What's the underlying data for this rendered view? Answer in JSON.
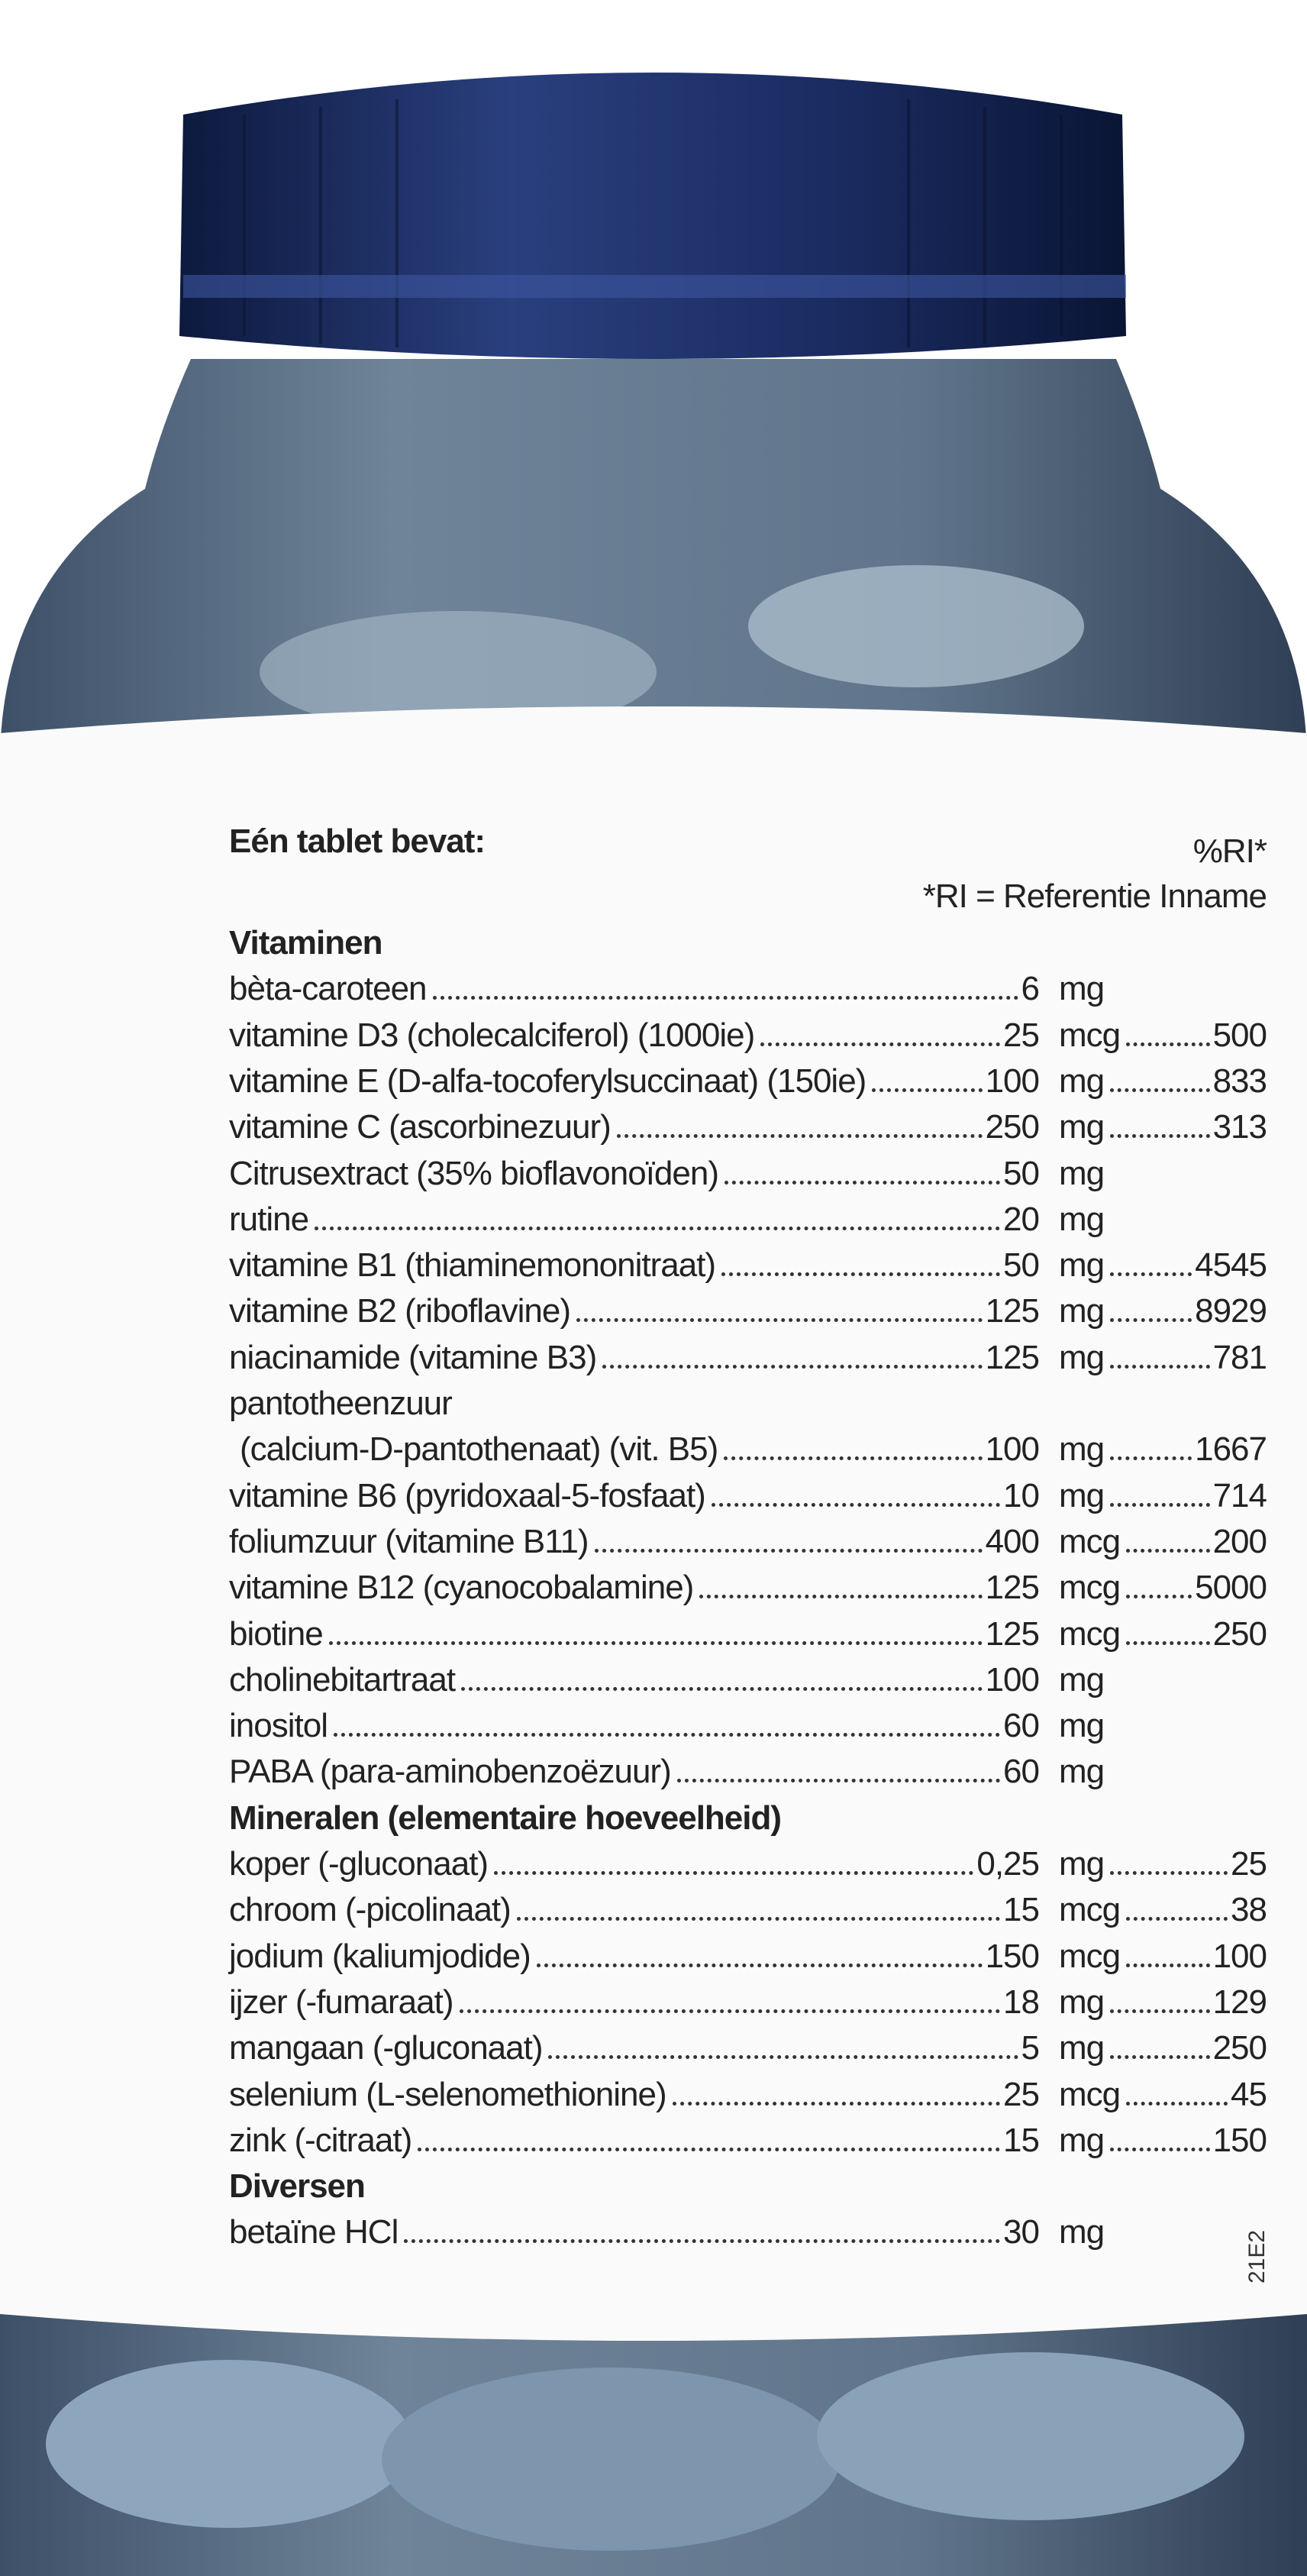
{
  "header": {
    "title": "Eén tablet bevat:",
    "ri_header": "%RI*",
    "ri_note": "*RI = Referentie Inname"
  },
  "sections": [
    {
      "title": "Vitaminen",
      "rows": [
        {
          "name": "bèta-caroteen",
          "amount": "6",
          "unit": "mg"
        },
        {
          "name": "vitamine D3 (cholecalciferol) (1000ie)",
          "amount": "25",
          "unit": "mcg",
          "ri": "500"
        },
        {
          "name": "vitamine E (D-alfa-tocoferylsuccinaat) (150ie)",
          "amount": "100",
          "unit": "mg",
          "ri": "833"
        },
        {
          "name": "vitamine C (ascorbinezuur)",
          "amount": "250",
          "unit": "mg",
          "ri": "313"
        },
        {
          "name": "Citrusextract (35% bioflavonoïden)",
          "amount": "50",
          "unit": "mg"
        },
        {
          "name": "rutine",
          "amount": "20",
          "unit": "mg"
        },
        {
          "name": "vitamine B1 (thiaminemononitraat)",
          "amount": "50",
          "unit": "mg",
          "ri": "4545"
        },
        {
          "name": "vitamine B2 (riboflavine)",
          "amount": "125",
          "unit": "mg",
          "ri": "8929"
        },
        {
          "name": "niacinamide (vitamine B3)",
          "amount": "125",
          "unit": "mg",
          "ri": "781"
        },
        {
          "name": "pantotheenzuur",
          "name_cont": "(calcium-D-pantothenaat) (vit. B5)",
          "amount": "100",
          "unit": "mg",
          "ri": "1667"
        },
        {
          "name": "vitamine B6 (pyridoxaal-5-fosfaat)",
          "amount": "10",
          "unit": "mg",
          "ri": "714"
        },
        {
          "name": "foliumzuur (vitamine B11)",
          "amount": "400",
          "unit": "mcg",
          "ri": "200"
        },
        {
          "name": "vitamine B12 (cyanocobalamine)",
          "amount": "125",
          "unit": "mcg",
          "ri": "5000"
        },
        {
          "name": "biotine",
          "amount": "125",
          "unit": "mcg",
          "ri": "250"
        },
        {
          "name": "cholinebitartraat",
          "amount": "100",
          "unit": "mg"
        },
        {
          "name": "inositol",
          "amount": "60",
          "unit": "mg"
        },
        {
          "name": "PABA (para-aminobenzoëzuur)",
          "amount": "60",
          "unit": "mg"
        }
      ]
    },
    {
      "title": "Mineralen (elementaire hoeveelheid)",
      "rows": [
        {
          "name": "koper (-gluconaat)",
          "amount": "0,25",
          "unit": "mg",
          "ri": "25"
        },
        {
          "name": "chroom (-picolinaat)",
          "amount": "15",
          "unit": "mcg",
          "ri": "38"
        },
        {
          "name": "jodium (kaliumjodide)",
          "amount": "150",
          "unit": "mcg",
          "ri": "100"
        },
        {
          "name": "ijzer (-fumaraat)",
          "amount": "18",
          "unit": "mg",
          "ri": "129"
        },
        {
          "name": "mangaan (-gluconaat)",
          "amount": "5",
          "unit": "mg",
          "ri": "250"
        },
        {
          "name": "selenium (L-selenomethionine)",
          "amount": "25",
          "unit": "mcg",
          "ri": "45"
        },
        {
          "name": "zink (-citraat)",
          "amount": "15",
          "unit": "mg",
          "ri": "150"
        }
      ]
    },
    {
      "title": "Diversen",
      "rows": [
        {
          "name": "betaïne HCl",
          "amount": "30",
          "unit": "mg"
        }
      ]
    }
  ],
  "side_code": "21E2"
}
